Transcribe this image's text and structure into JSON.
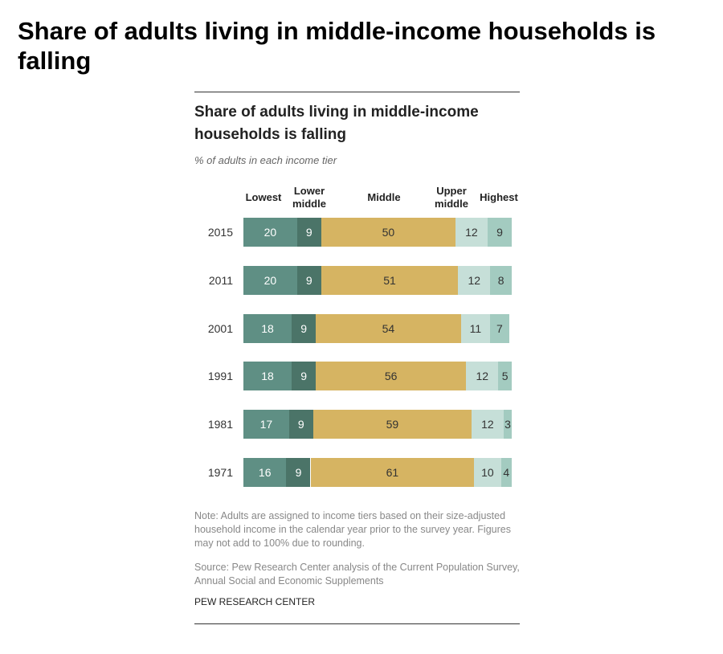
{
  "heading": "Share of adults living in middle-income households is falling",
  "chart_data": {
    "type": "bar",
    "orientation": "horizontal",
    "stacked": true,
    "title": "Share of adults living in middle-income households is falling",
    "subtitle": "% of adults in each income tier",
    "categories": [
      "2015",
      "2011",
      "2001",
      "1991",
      "1981",
      "1971"
    ],
    "series": [
      {
        "name": "Lowest",
        "color": "#5f8f84",
        "values": [
          20,
          20,
          18,
          18,
          17,
          16
        ]
      },
      {
        "name": "Lower middle",
        "color": "#4b7468",
        "values": [
          9,
          9,
          9,
          9,
          9,
          9
        ]
      },
      {
        "name": "Middle",
        "color": "#d6b462",
        "values": [
          50,
          51,
          54,
          56,
          59,
          61
        ]
      },
      {
        "name": "Upper middle",
        "color": "#c6dfd8",
        "values": [
          12,
          12,
          11,
          12,
          12,
          10
        ]
      },
      {
        "name": "Highest",
        "color": "#a3cbc0",
        "values": [
          9,
          8,
          7,
          5,
          3,
          4
        ]
      }
    ],
    "note": "Note: Adults are assigned to income tiers based on their size-adjusted household income in the calendar year prior to the survey year. Figures may not add to 100% due to rounding.",
    "source": "Source: Pew Research Center analysis of the Current Population Survey, Annual Social and Economic Supplements",
    "credit": "PEW RESEARCH CENTER"
  }
}
